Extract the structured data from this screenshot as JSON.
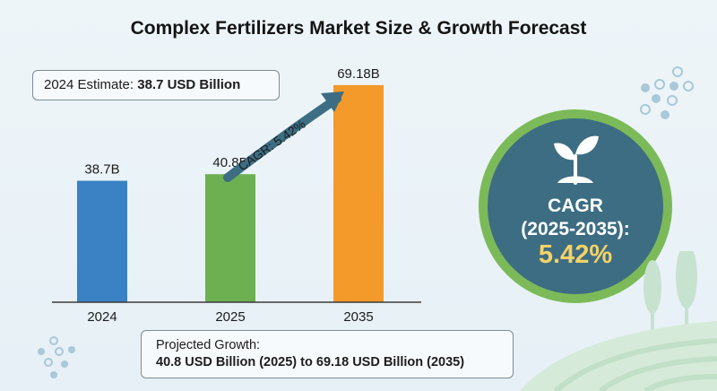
{
  "title": "Complex Fertilizers Market Size & Growth Forecast",
  "estimate": {
    "label": "2024 Estimate:",
    "value": "38.7 USD Billion"
  },
  "projection": {
    "label": "Projected Growth:",
    "value": "40.8 USD Billion (2025) to 69.18 USD Billion (2035)"
  },
  "badge": {
    "label_line1": "CAGR",
    "label_line2": "(2025-2035):",
    "value": "5.42%"
  },
  "arrow_label": "CAGR: 5.42%",
  "colors": {
    "bar_2024": "#3a82c4",
    "bar_2025": "#6db052",
    "bar_2035": "#f39a2a",
    "badge_fill": "#3d6d82",
    "badge_ring": "#7cba59",
    "badge_value": "#f5d266",
    "arrow": "#3c6d83"
  },
  "chart_data": {
    "type": "bar",
    "categories": [
      "2024",
      "2025",
      "2035"
    ],
    "values": [
      38.7,
      40.8,
      69.18
    ],
    "data_labels": [
      "38.7B",
      "40.8B",
      "69.18B"
    ],
    "ylim": [
      0,
      80
    ],
    "grid": false,
    "legend": "none"
  }
}
